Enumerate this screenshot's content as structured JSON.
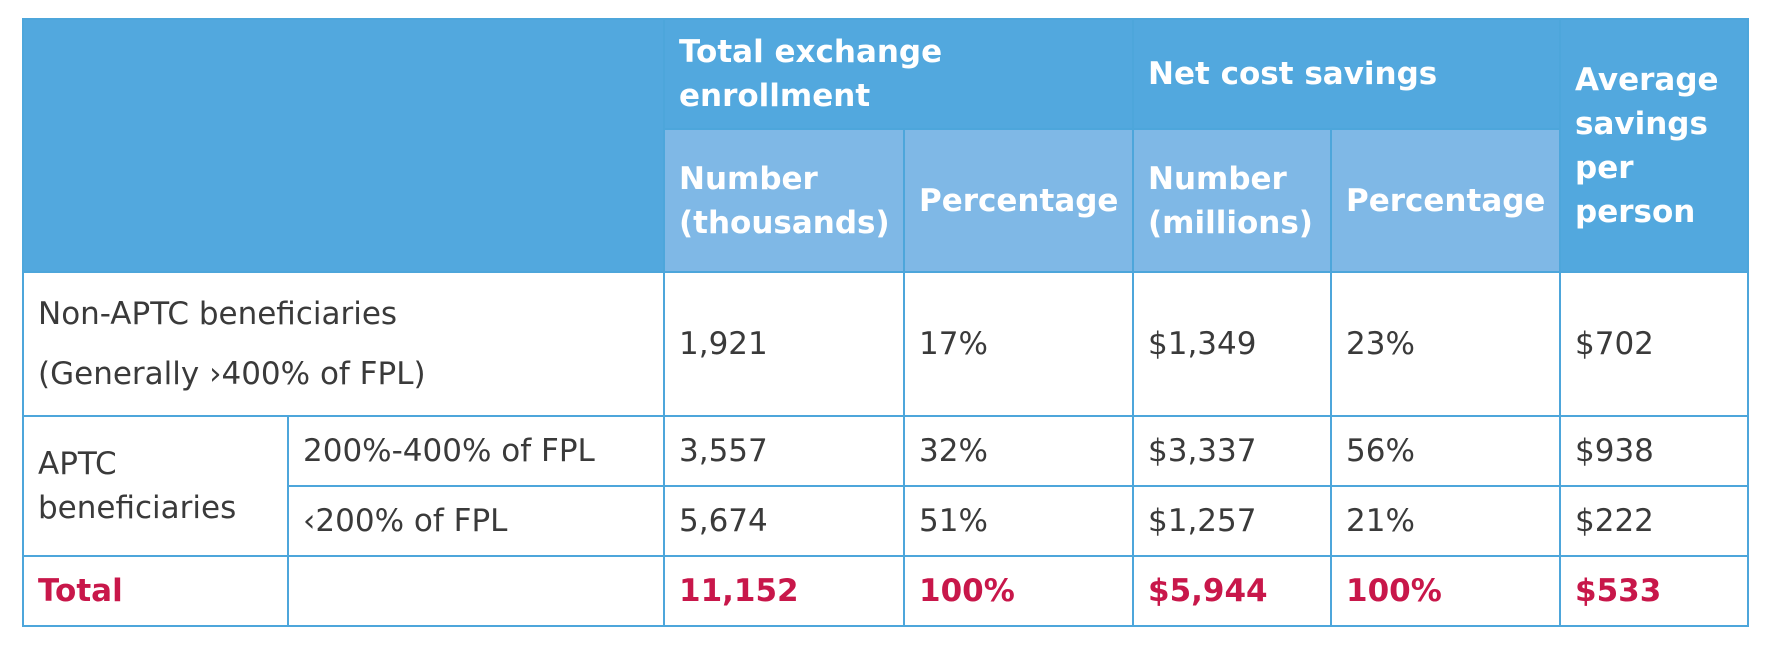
{
  "header": {
    "group_enrollment": "Total exchange enrollment",
    "group_savings": "Net cost savings",
    "group_average": [
      "Average",
      "savings",
      "per",
      "person"
    ],
    "sub_enroll_number": [
      "Number",
      "(thousands)"
    ],
    "sub_enroll_percentage": "Percentage",
    "sub_savings_number": [
      "Number",
      "(millions)"
    ],
    "sub_savings_percentage": "Percentage"
  },
  "rows": {
    "non_aptc": {
      "label": [
        "Non-APTC beneficiaries",
        "(Generally ›400% of FPL)"
      ],
      "enroll_number": "1,921",
      "enroll_pct": "17%",
      "savings_number": "$1,349",
      "savings_pct": "23%",
      "avg": "$702"
    },
    "aptc_label": [
      "APTC",
      "beneficiaries"
    ],
    "aptc_high": {
      "sublabel": "200%-400% of FPL",
      "enroll_number": "3,557",
      "enroll_pct": "32%",
      "savings_number": "$3,337",
      "savings_pct": "56%",
      "avg": "$938"
    },
    "aptc_low": {
      "sublabel": "‹200% of FPL",
      "enroll_number": "5,674",
      "enroll_pct": "51%",
      "savings_number": "$1,257",
      "savings_pct": "21%",
      "avg": "$222"
    },
    "total": {
      "label": "Total",
      "enroll_number": "11,152",
      "enroll_pct": "100%",
      "savings_number": "$5,944",
      "savings_pct": "100%",
      "avg": "$533"
    }
  },
  "colors": {
    "header_dark": "#52a8de",
    "header_light": "#7fb8e6",
    "border": "#4da6db",
    "body_text": "#3a3a3a",
    "total_text": "#c8174a"
  }
}
